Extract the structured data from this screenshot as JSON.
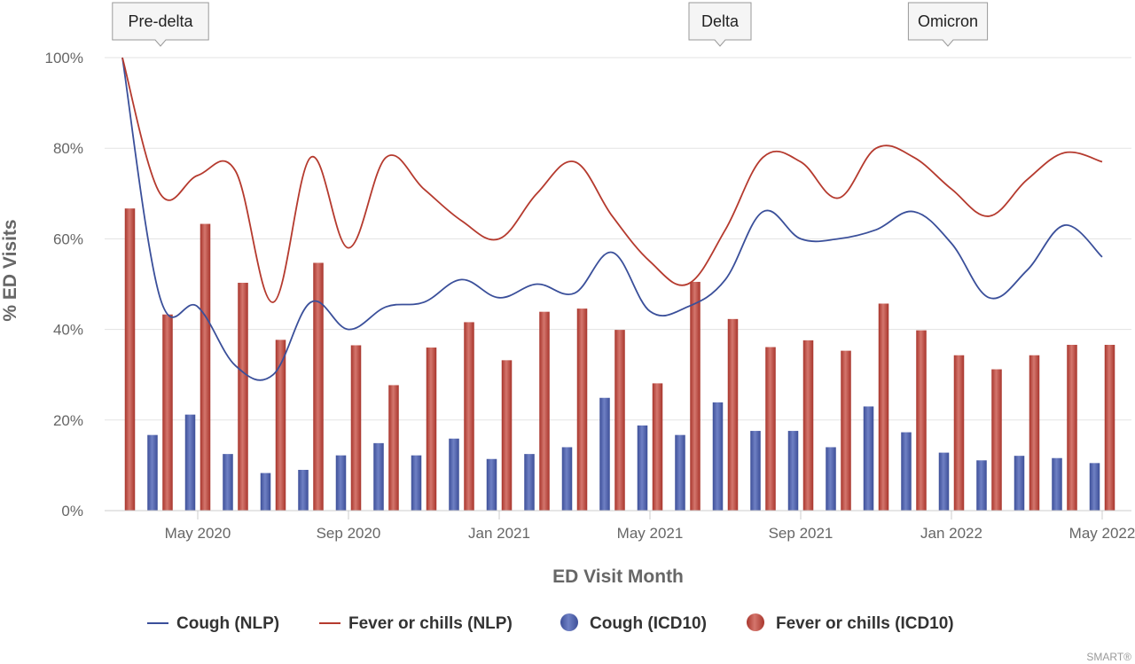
{
  "chart_data": {
    "type": "bar",
    "xlabel": "ED Visit Month",
    "ylabel": "% ED Visits",
    "ylim": [
      0,
      100
    ],
    "yticks": [
      "0%",
      "20%",
      "40%",
      "60%",
      "80%",
      "100%"
    ],
    "months": [
      "Mar 2020",
      "Apr 2020",
      "May 2020",
      "Jun 2020",
      "Jul 2020",
      "Aug 2020",
      "Sep 2020",
      "Oct 2020",
      "Nov 2020",
      "Dec 2020",
      "Jan 2021",
      "Feb 2021",
      "Mar 2021",
      "Apr 2021",
      "May 2021",
      "Jun 2021",
      "Jul 2021",
      "Aug 2021",
      "Sep 2021",
      "Oct 2021",
      "Nov 2021",
      "Dec 2021",
      "Jan 2022",
      "Feb 2022",
      "Mar 2022",
      "Apr 2022",
      "May 2022"
    ],
    "xtick_labels": [
      {
        "month": "May 2020",
        "label": "May 2020"
      },
      {
        "month": "Sep 2020",
        "label": "Sep 2020"
      },
      {
        "month": "Jan 2021",
        "label": "Jan 2021"
      },
      {
        "month": "May 2021",
        "label": "May 2021"
      },
      {
        "month": "Sep 2021",
        "label": "Sep 2021"
      },
      {
        "month": "Jan 2022",
        "label": "Jan 2022"
      },
      {
        "month": "May 2022",
        "label": "May 2022"
      }
    ],
    "series": [
      {
        "name": "Cough (NLP)",
        "kind": "line",
        "color": "#3a4f9a",
        "values": [
          100,
          47,
          45,
          32,
          30,
          46,
          40,
          45,
          46,
          51,
          47,
          50,
          48,
          57,
          44,
          45,
          51,
          66,
          60,
          60,
          62,
          66,
          59,
          47,
          53,
          63,
          56
        ]
      },
      {
        "name": "Fever or chills (NLP)",
        "kind": "line",
        "color": "#b53a2e",
        "values": [
          100,
          70,
          74,
          75,
          46,
          78,
          58,
          78,
          71,
          64,
          60,
          70,
          77,
          65,
          55,
          50,
          62,
          78,
          77,
          69,
          80,
          78,
          71,
          65,
          73,
          79,
          77
        ]
      },
      {
        "name": "Cough (ICD10)",
        "kind": "bar",
        "color": "#4a5ca8",
        "values": [
          null,
          16.7,
          21.2,
          12.5,
          8.3,
          9.0,
          12.2,
          14.9,
          12.2,
          15.9,
          11.4,
          12.5,
          14.0,
          24.9,
          18.8,
          16.7,
          23.9,
          17.6,
          17.6,
          14.0,
          23.0,
          17.3,
          12.8,
          11.1,
          12.1,
          11.6,
          10.5
        ]
      },
      {
        "name": "Fever or chills (ICD10)",
        "kind": "bar",
        "color": "#c0423a",
        "values": [
          66.7,
          43.3,
          63.3,
          50.3,
          37.7,
          54.7,
          36.5,
          27.7,
          36.0,
          41.6,
          33.2,
          43.9,
          44.6,
          39.9,
          28.1,
          50.5,
          42.3,
          36.1,
          37.6,
          35.3,
          45.7,
          39.8,
          34.3,
          31.2,
          34.3,
          36.6,
          36.6
        ]
      }
    ],
    "annotations": [
      {
        "label": "Pre-delta",
        "month": "Apr 2020"
      },
      {
        "label": "Delta",
        "month": "Jun 2021"
      },
      {
        "label": "Omicron",
        "month": "Nov 2021"
      }
    ],
    "grid": true,
    "legend_position": "bottom"
  },
  "credit": "SMART®"
}
